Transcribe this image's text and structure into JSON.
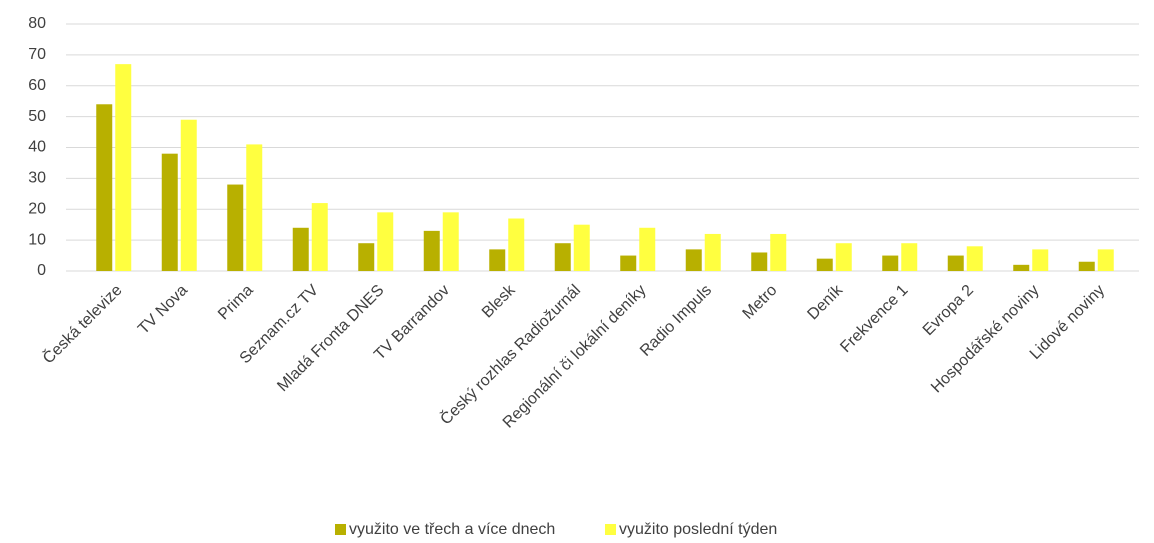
{
  "chart_data": {
    "type": "bar",
    "categories": [
      "Česká televize",
      "TV Nova",
      "Prima",
      "Seznam.cz TV",
      "Mladá Fronta DNES",
      "TV Barrandov",
      "Blesk",
      "Český rozhlas Radiožurnál",
      "Regionální či lokální deníky",
      "Radio Impuls",
      "Metro",
      "Deník",
      "Frekvence 1",
      "Evropa 2",
      "Hospodářské noviny",
      "Lidové noviny"
    ],
    "series": [
      {
        "name": "využito ve třech a více dnech",
        "color": "#b8b000",
        "values": [
          54,
          38,
          28,
          14,
          9,
          13,
          7,
          9,
          5,
          7,
          6,
          4,
          5,
          5,
          2,
          3
        ]
      },
      {
        "name": "využito poslední týden",
        "color": "#ffff40",
        "values": [
          67,
          49,
          41,
          22,
          19,
          19,
          17,
          15,
          14,
          12,
          12,
          9,
          9,
          8,
          7,
          7
        ]
      }
    ],
    "ylim": [
      0,
      80
    ],
    "yticks": [
      0,
      10,
      20,
      30,
      40,
      50,
      60,
      70,
      80
    ],
    "grid": true,
    "legend": "bottom"
  }
}
